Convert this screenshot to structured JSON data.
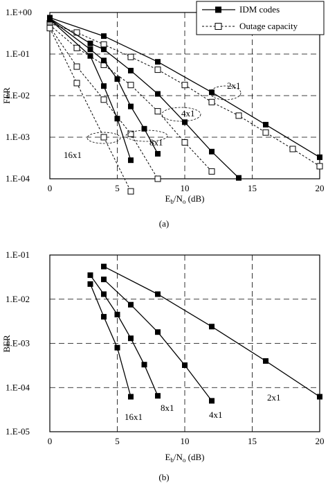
{
  "figure": {
    "captions": [
      "(a)",
      "(b)"
    ]
  },
  "chart_data": [
    {
      "type": "line",
      "panel_caption": "(a)",
      "ylabel": "FER",
      "xlabel_parts": {
        "e": "E",
        "b": "b",
        "slash": "/N",
        "o": "o",
        "unit": " (dB)"
      },
      "xlim": [
        0,
        20
      ],
      "ylim_log10": [
        -4,
        0
      ],
      "y_scale": "log",
      "x_ticks": [
        0,
        5,
        10,
        15,
        20
      ],
      "y_ticks": [
        {
          "exp": 0,
          "label": "1.E+00"
        },
        {
          "exp": -1,
          "label": "1.E-01"
        },
        {
          "exp": -2,
          "label": "1.E-02"
        },
        {
          "exp": -3,
          "label": "1.E-03"
        },
        {
          "exp": -4,
          "label": "1.E-04"
        }
      ],
      "grid": true,
      "legend_position": "top-right",
      "legend": [
        {
          "label": "IDM codes",
          "style": "solid-filled-square"
        },
        {
          "label": "Outage capacity",
          "style": "dashed-open-square"
        }
      ],
      "series": [
        {
          "label": "2x1",
          "kind": "idm",
          "x": [
            0,
            4,
            8,
            12,
            16,
            20
          ],
          "y": [
            0.75,
            0.27,
            0.065,
            0.012,
            0.002,
            0.00033
          ]
        },
        {
          "label": "2x1",
          "kind": "outage",
          "x": [
            0,
            2,
            4,
            6,
            8,
            10,
            12,
            14,
            16,
            18,
            20
          ],
          "y": [
            0.55,
            0.33,
            0.17,
            0.085,
            0.042,
            0.018,
            0.007,
            0.0033,
            0.0013,
            0.00052,
            0.0002
          ]
        },
        {
          "label": "4x1",
          "kind": "idm",
          "x": [
            0,
            3,
            4,
            6,
            8,
            10,
            12,
            14
          ],
          "y": [
            0.72,
            0.18,
            0.13,
            0.04,
            0.011,
            0.0023,
            0.00045,
            0.000105
          ]
        },
        {
          "label": "4x1",
          "kind": "outage",
          "x": [
            0,
            2,
            4,
            6,
            8,
            10,
            12
          ],
          "y": [
            0.5,
            0.14,
            0.055,
            0.018,
            0.0042,
            0.00075,
            0.00015
          ]
        },
        {
          "label": "8x1",
          "kind": "idm",
          "x": [
            0,
            3,
            4,
            5,
            6,
            7,
            8
          ],
          "y": [
            0.7,
            0.13,
            0.07,
            0.025,
            0.0055,
            0.0016,
            0.0004
          ]
        },
        {
          "label": "8x1",
          "kind": "outage",
          "x": [
            0,
            2,
            4,
            6,
            8
          ],
          "y": [
            0.45,
            0.05,
            0.008,
            0.0012,
            0.0001
          ]
        },
        {
          "label": "16x1",
          "kind": "idm",
          "x": [
            0,
            3,
            4,
            5,
            6
          ],
          "y": [
            0.68,
            0.09,
            0.017,
            0.0028,
            0.00028
          ]
        },
        {
          "label": "16x1",
          "kind": "outage",
          "x": [
            0,
            2,
            4,
            6
          ],
          "y": [
            0.42,
            0.02,
            0.001,
            5e-05
          ]
        }
      ],
      "annotations": [
        {
          "text": "2x1",
          "near_x": 13,
          "near_y_exp": -2
        },
        {
          "text": "4x1",
          "near_x": 9,
          "near_y_exp": -2.5
        },
        {
          "text": "8x1",
          "near_x": 7,
          "near_y_exp": -3.15
        },
        {
          "text": "16x1",
          "near_x": 2,
          "near_y_exp": -3.33
        }
      ]
    },
    {
      "type": "line",
      "panel_caption": "(b)",
      "ylabel": "BER",
      "xlabel_parts": {
        "e": "E",
        "b": "b",
        "slash": "/N",
        "o": "o",
        "unit": " (dB)"
      },
      "xlim": [
        0,
        20
      ],
      "ylim_log10": [
        -5,
        -1
      ],
      "y_scale": "log",
      "x_ticks": [
        0,
        5,
        10,
        15,
        20
      ],
      "y_ticks": [
        {
          "exp": -1,
          "label": "1.E-01"
        },
        {
          "exp": -2,
          "label": "1.E-02"
        },
        {
          "exp": -3,
          "label": "1.E-03"
        },
        {
          "exp": -4,
          "label": "1.E-04"
        },
        {
          "exp": -5,
          "label": "1.E-05"
        }
      ],
      "grid": true,
      "series": [
        {
          "label": "2x1",
          "kind": "idm",
          "x": [
            4,
            8,
            12,
            16,
            20
          ],
          "y": [
            0.055,
            0.013,
            0.0024,
            0.0004,
            6.2e-05
          ]
        },
        {
          "label": "4x1",
          "kind": "idm",
          "x": [
            4,
            6,
            8,
            10,
            12
          ],
          "y": [
            0.028,
            0.0075,
            0.0018,
            0.00032,
            5e-05
          ]
        },
        {
          "label": "8x1",
          "kind": "idm",
          "x": [
            3,
            4,
            5,
            6,
            7,
            8
          ],
          "y": [
            0.035,
            0.013,
            0.0045,
            0.0013,
            0.00033,
            6.5e-05
          ]
        },
        {
          "label": "16x1",
          "kind": "idm",
          "x": [
            3,
            4,
            5,
            6
          ],
          "y": [
            0.022,
            0.004,
            0.0008,
            6.2e-05
          ]
        }
      ],
      "annotations": [
        {
          "text": "2x1",
          "near_x": 17,
          "near_y_exp": -4.3
        },
        {
          "text": "4x1",
          "near_x": 12,
          "near_y_exp": -4.7
        },
        {
          "text": "8x1",
          "near_x": 8,
          "near_y_exp": -4.55
        },
        {
          "text": "16x1",
          "near_x": 5.5,
          "near_y_exp": -4.7
        }
      ]
    }
  ]
}
